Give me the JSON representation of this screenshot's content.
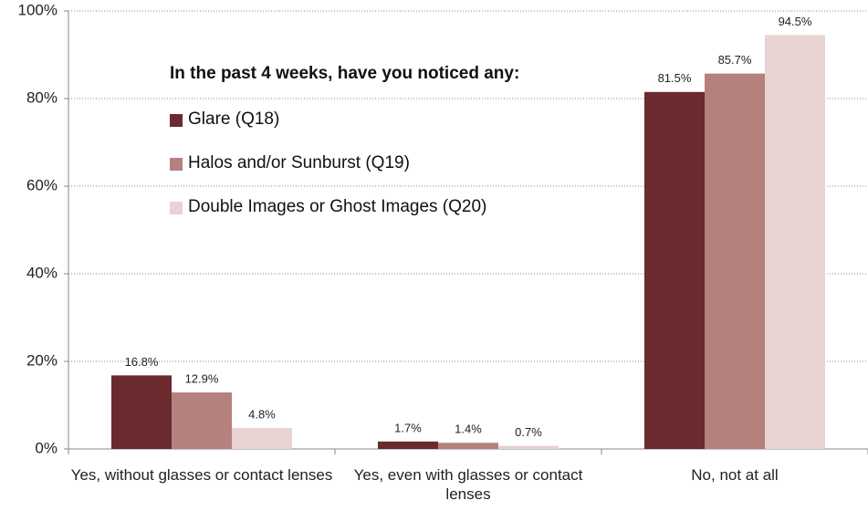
{
  "chart_data": {
    "type": "bar",
    "legend_title": "In the past 4 weeks, have you noticed any:",
    "categories": [
      "Yes, without glasses or contact lenses",
      "Yes, even with glasses or contact lenses",
      "No, not at all"
    ],
    "series": [
      {
        "name": "Glare (Q18)",
        "color": "#6b2a2e",
        "values": [
          16.8,
          1.7,
          81.5
        ],
        "value_labels": [
          "16.8%",
          "1.7%",
          "81.5%"
        ]
      },
      {
        "name": "Halos and/or Sunburst (Q19)",
        "color": "#b5817d",
        "values": [
          12.9,
          1.4,
          85.7
        ],
        "value_labels": [
          "12.9%",
          "1.4%",
          "85.7%"
        ]
      },
      {
        "name": "Double Images or Ghost Images (Q20)",
        "color": "#e8d2d2",
        "values": [
          4.8,
          0.7,
          94.5
        ],
        "value_labels": [
          "4.8%",
          "0.7%",
          "94.5%"
        ]
      }
    ],
    "ylim": [
      0,
      100
    ],
    "yticks": [
      {
        "value": 0,
        "label": "0%"
      },
      {
        "value": 20,
        "label": "20%"
      },
      {
        "value": 40,
        "label": "40%"
      },
      {
        "value": 60,
        "label": "60%"
      },
      {
        "value": 80,
        "label": "80%"
      },
      {
        "value": 100,
        "label": "100%"
      }
    ],
    "grid": true
  }
}
